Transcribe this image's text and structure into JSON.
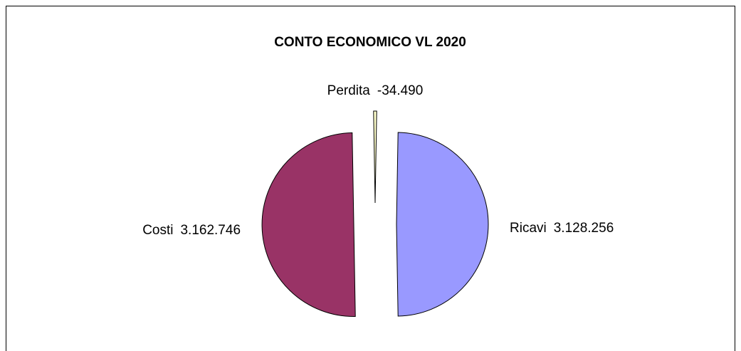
{
  "chart_data": {
    "type": "pie",
    "title": "CONTO ECONOMICO VL  2020",
    "categories": [
      "Perdita",
      "Ricavi",
      "Costi"
    ],
    "values": [
      -34490,
      3128256,
      3162746
    ],
    "value_labels": [
      "-34.490",
      "3.128.256",
      "3.162.746"
    ],
    "colors": [
      "#ffffcc",
      "#9999ff",
      "#993366"
    ],
    "exploded": true
  }
}
